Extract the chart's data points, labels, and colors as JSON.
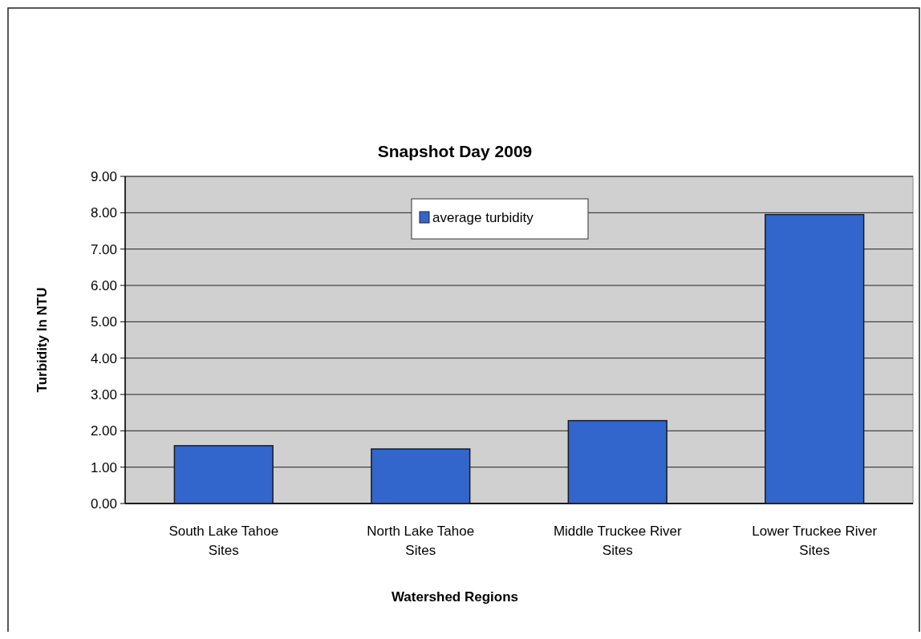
{
  "chart_data": {
    "type": "bar",
    "title": "Snapshot Day 2009",
    "xlabel": "Watershed Regions",
    "ylabel": "Turbidity In NTU",
    "categories": [
      "South Lake Tahoe Sites",
      "North Lake Tahoe Sites",
      "Middle Truckee River Sites",
      "Lower Truckee River Sites"
    ],
    "series": [
      {
        "name": "average turbidity",
        "color": "#3366cc",
        "values": [
          1.59,
          1.5,
          2.28,
          7.95
        ]
      }
    ],
    "ylim": [
      0,
      9
    ],
    "yticks": [
      {
        "value": 0,
        "label": "0.00"
      },
      {
        "value": 1,
        "label": "1.00"
      },
      {
        "value": 2,
        "label": "2.00"
      },
      {
        "value": 3,
        "label": "3.00"
      },
      {
        "value": 4,
        "label": "4.00"
      },
      {
        "value": 5,
        "label": "5.00"
      },
      {
        "value": 6,
        "label": "6.00"
      },
      {
        "value": 7,
        "label": "7.00"
      },
      {
        "value": 8,
        "label": "8.00"
      },
      {
        "value": 9,
        "label": "9.00"
      }
    ],
    "grid": "y",
    "legend": "top"
  }
}
